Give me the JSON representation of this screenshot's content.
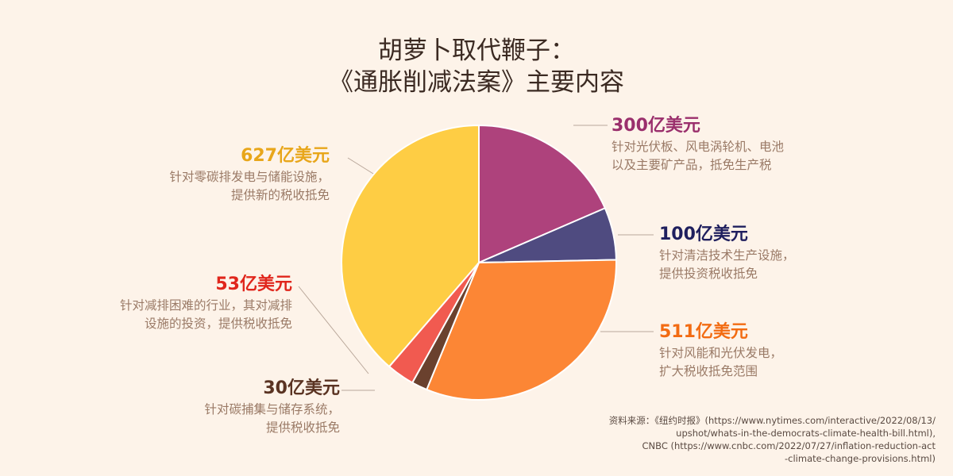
{
  "title": {
    "line1": "胡萝卜取代鞭子：",
    "line2": "《通胀削减法案》主要内容"
  },
  "chart_data": {
    "type": "pie",
    "unit": "亿美元",
    "slices": [
      {
        "label": "300亿美元",
        "value": 300,
        "color": "#ae427c",
        "amount_color": "#9a2f6c",
        "desc1": "针对光伏板、风电涡轮机、电池",
        "desc2": "以及主要矿产品，抵免生产税"
      },
      {
        "label": "100亿美元",
        "value": 100,
        "color": "#4f4b80",
        "amount_color": "#1f1f5e",
        "desc1": "针对清洁技术生产设施，",
        "desc2": "提供投资税收抵免"
      },
      {
        "label": "511亿美元",
        "value": 511,
        "color": "#fc8635",
        "amount_color": "#f26b12",
        "desc1": "针对风能和光伏发电，",
        "desc2": "扩大税收抵免范围"
      },
      {
        "label": "30亿美元",
        "value": 30,
        "color": "#6a412e",
        "amount_color": "#5a3322",
        "desc1": "针对碳捕集与储存系统，",
        "desc2": "提供税收抵免"
      },
      {
        "label": "53亿美元",
        "value": 53,
        "color": "#f15a50",
        "amount_color": "#e0261c",
        "desc1": "针对减排困难的行业，其对减排",
        "desc2": "设施的投资，提供税收抵免"
      },
      {
        "label": "627亿美元",
        "value": 627,
        "color": "#fecd44",
        "amount_color": "#e8a61a",
        "desc1": "针对零碳排发电与储能设施，",
        "desc2": "提供新的税收抵免"
      }
    ]
  },
  "source": {
    "line1": "资料来源：《纽约时报》(https://www.nytimes.com/interactive/2022/08/13/",
    "line2": "upshot/whats-in-the-democrats-climate-health-bill.html),",
    "line3": "CNBC (https://www.cnbc.com/2022/07/27/inflation-reduction-act",
    "line4": "-climate-change-provisions.html)"
  }
}
